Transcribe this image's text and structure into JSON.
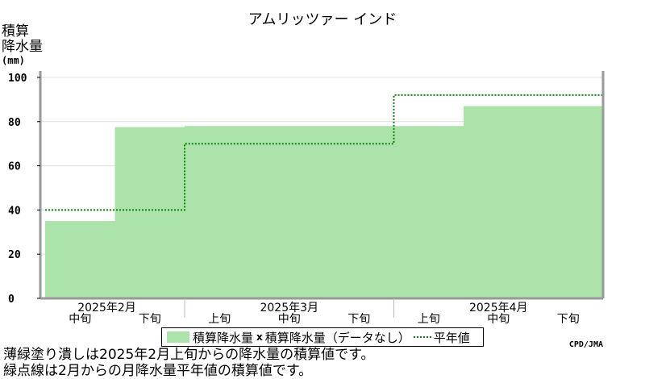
{
  "title": "アムリッツァー インド",
  "ylabel_lines": [
    "積算",
    "降水量"
  ],
  "ylabel_unit": "(mm)",
  "credit": "CPD/JMA",
  "notes": [
    "薄緑塗り潰しは2025年2月上旬からの降水量の積算値です。",
    "緑点線は2月からの月降水量平年値の積算値です。"
  ],
  "legend": {
    "filled": "積算降水量",
    "missing": "積算降水量（データなし）",
    "normal": "平年値"
  },
  "colors": {
    "fill": "#abe3ab",
    "normal_line": "#0f800f",
    "frame": "#999999",
    "grid": "#dddddd"
  },
  "chart_data": {
    "type": "area",
    "title": "アムリッツァー インド",
    "ylabel": "積算降水量",
    "ylim": [
      0,
      100
    ],
    "yticks": [
      0,
      20,
      40,
      60,
      80,
      100
    ],
    "grid": true,
    "periods": [
      "中旬",
      "下旬",
      "上旬",
      "中旬",
      "下旬",
      "上旬",
      "中旬",
      "下旬"
    ],
    "months": [
      {
        "label": "2025年2月",
        "start": 0,
        "end": 2
      },
      {
        "label": "2025年3月",
        "start": 2,
        "end": 5
      },
      {
        "label": "2025年4月",
        "start": 5,
        "end": 8
      }
    ],
    "series": [
      {
        "name": "積算降水量",
        "style": "filled-step",
        "values": [
          35,
          77.5,
          78,
          78,
          78,
          78,
          87,
          87
        ]
      },
      {
        "name": "平年値",
        "style": "dotted-step",
        "values": [
          40,
          40,
          70,
          70,
          70,
          92,
          92,
          92
        ]
      }
    ]
  }
}
